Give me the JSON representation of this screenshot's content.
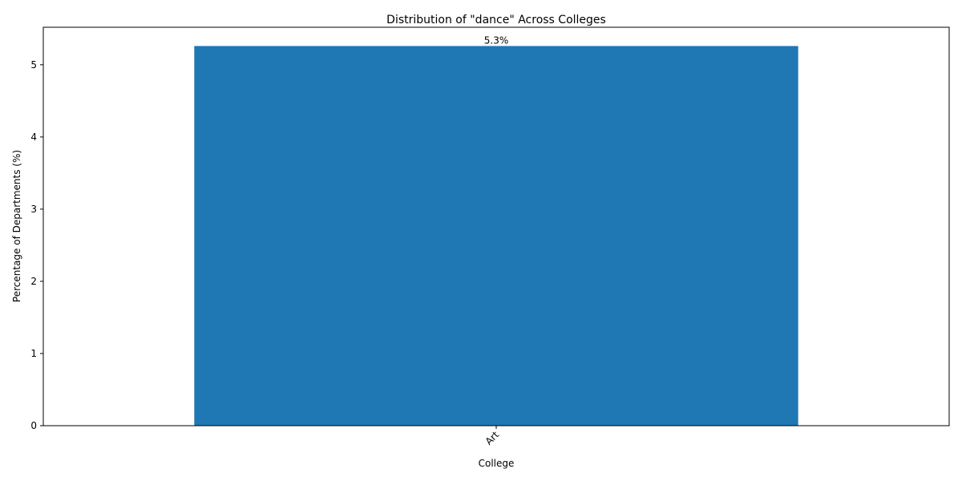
{
  "chart_data": {
    "type": "bar",
    "title": "Distribution of \"dance\" Across Colleges",
    "xlabel": "College",
    "ylabel": "Percentage of Departments (%)",
    "categories": [
      "Art"
    ],
    "values": [
      5.26
    ],
    "data_labels": [
      "5.3%"
    ],
    "ylim": [
      0,
      5.52
    ],
    "yticks": [
      0,
      1,
      2,
      3,
      4,
      5
    ],
    "ytick_labels": [
      "0",
      "1",
      "2",
      "3",
      "4",
      "5"
    ],
    "xtick_rotation_deg": 45,
    "grid": false,
    "legend": "none",
    "bar_color": "#1f77b4"
  }
}
